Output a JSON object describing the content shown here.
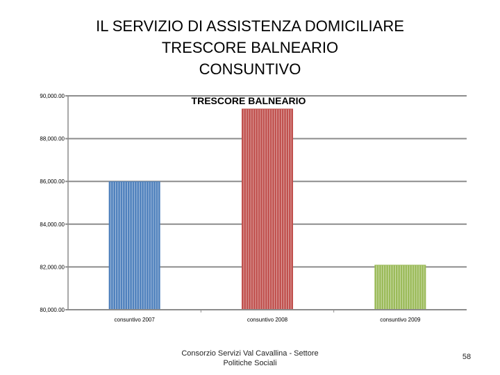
{
  "slide": {
    "title_lines": [
      "IL SERVIZIO DI ASSISTENZA DOMICILIARE",
      "TRESCORE BALNEARIO",
      "CONSUNTIVO"
    ],
    "footer_lines": [
      "Consorzio Servizi Val Cavallina - Settore",
      "Politiche Sociali"
    ],
    "page_number": "58"
  },
  "chart_data": {
    "type": "bar",
    "title": "TRESCORE BALNEARIO",
    "categories": [
      "consuntivo 2007",
      "consuntivo 2008",
      "consuntivo 2009"
    ],
    "values": [
      86000,
      89400,
      82100
    ],
    "ylim": [
      80000,
      90000
    ],
    "yticks": [
      80000,
      82000,
      84000,
      86000,
      88000,
      90000
    ],
    "ytick_labels": [
      "80,000.00",
      "82,000.00",
      "84,000.00",
      "86,000.00",
      "88,000.00",
      "90,000.00"
    ],
    "colors": [
      "#4f81bd",
      "#c0504d",
      "#9bbb59"
    ],
    "grid": true,
    "legend": "none"
  }
}
